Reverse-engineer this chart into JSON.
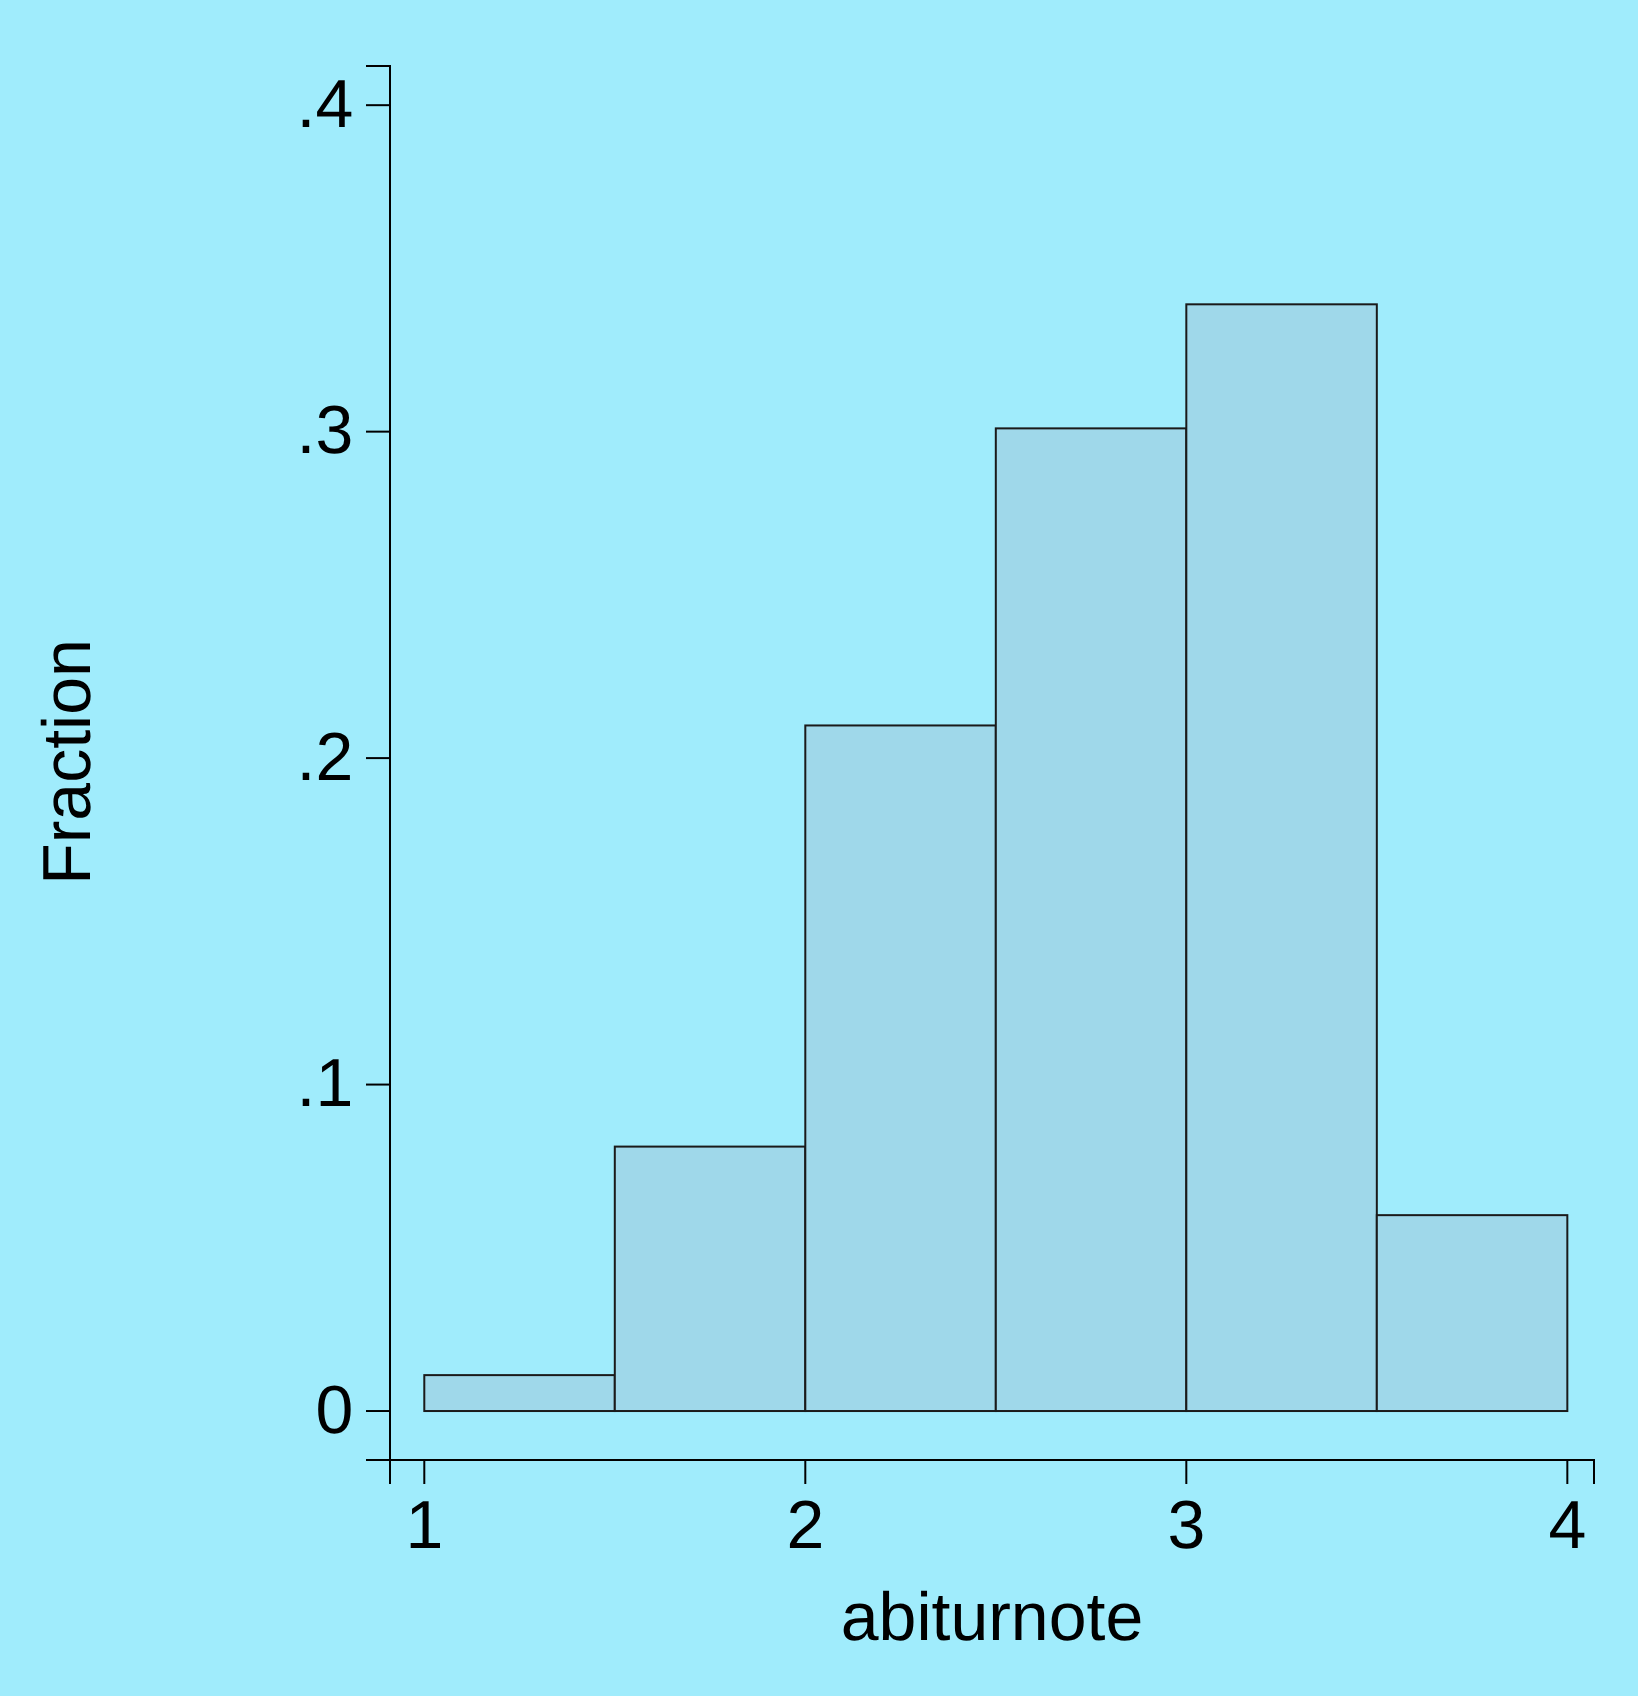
{
  "chart_data": {
    "type": "histogram",
    "xlabel": "abiturnote",
    "ylabel": "Fraction",
    "bins": [
      1,
      1.5,
      2,
      2.5,
      3,
      3.5,
      4
    ],
    "values": [
      0.011,
      0.081,
      0.21,
      0.301,
      0.339,
      0.06
    ],
    "color": "#9fd8ea",
    "xlim": [
      0.91,
      4.07
    ],
    "xticks": [
      1,
      2,
      3,
      4
    ],
    "ylim": [
      -0.015,
      0.412
    ],
    "yticks": [
      {
        "value": 0,
        "label": "0"
      },
      {
        "value": 0.1,
        "label": ".1"
      },
      {
        "value": 0.2,
        "label": ".2"
      },
      {
        "value": 0.3,
        "label": ".3"
      },
      {
        "value": 0.4,
        "label": ".4"
      }
    ],
    "grid": false
  }
}
